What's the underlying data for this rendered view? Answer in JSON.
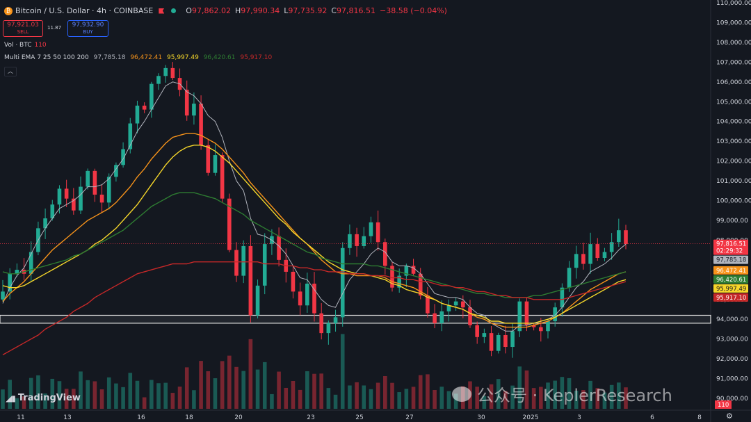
{
  "header": {
    "symbol": "Bitcoin / U.S. Dollar · 4h · COINBASE",
    "btc_icon": "₿",
    "ohlc": [
      {
        "k": "O",
        "v": "97,862.02"
      },
      {
        "k": "H",
        "v": "97,990.34"
      },
      {
        "k": "L",
        "v": "97,735.92"
      },
      {
        "k": "C",
        "v": "97,816.51"
      }
    ],
    "change": "−38.58 (−0.04%)"
  },
  "trade": {
    "sell_price": "97,921.03",
    "sell_label": "SELL",
    "spread": "11.87",
    "buy_price": "97,932.90",
    "buy_label": "BUY"
  },
  "volume": {
    "label": "Vol · BTC",
    "value": "110"
  },
  "ema_legend": {
    "label": "Multi EMA 7 25 50 100 200",
    "values": [
      "97,785.18",
      "96,472.41",
      "95,997.49",
      "96,420.61",
      "95,917.10"
    ]
  },
  "collapse_icon": "chevron-up-icon",
  "colors": {
    "up": "#22ab94",
    "down": "#f23645",
    "ema7": "#b2b5be",
    "ema25": "#f7931a",
    "ema50": "#f5d62a",
    "ema100": "#2e7d32",
    "ema200": "#c62828"
  },
  "branding": {
    "tradingview": "TradingView"
  },
  "watermark": "公众号 · KeplerResearch",
  "chart_data": {
    "type": "candlestick",
    "yaxis": {
      "range": [
        90000,
        110000
      ],
      "ticks": [
        "110,000.00",
        "109,000.00",
        "108,000.00",
        "107,000.00",
        "106,000.00",
        "105,000.00",
        "104,000.00",
        "103,000.00",
        "102,000.00",
        "101,000.00",
        "100,000.00",
        "99,000.00",
        "98,000.00",
        "97,000.00",
        "96,000.00",
        "95,000.00",
        "94,000.00",
        "93,000.00",
        "92,000.00",
        "91,000.00",
        "90,000.00"
      ]
    },
    "xaxis": {
      "ticks": [
        "11",
        "13",
        "16",
        "18",
        "20",
        "23",
        "25",
        "27",
        "30",
        "2025",
        "3",
        "6",
        "8"
      ]
    },
    "price_labels": [
      {
        "name": "last",
        "value": 97816.51,
        "text": "97,816.51",
        "sub": "02:29:32",
        "color": "#f23645"
      },
      {
        "name": "ema7",
        "value": 97785.18,
        "text": "97,785.18",
        "color": "#b2b5be"
      },
      {
        "name": "ema25",
        "value": 96472.41,
        "text": "96,472.41",
        "color": "#f7931a"
      },
      {
        "name": "ema100",
        "value": 96420.61,
        "text": "96,420.61",
        "color": "#2e7d32"
      },
      {
        "name": "ema50",
        "value": 95997.49,
        "text": "95,997.49",
        "color": "#f5d62a"
      },
      {
        "name": "ema200",
        "value": 95917.1,
        "text": "95,917.10",
        "color": "#c62828"
      }
    ],
    "volume_label": "110",
    "support_zone": [
      93800,
      94200
    ],
    "close_series": [
      95400,
      96300,
      96500,
      96300,
      97400,
      98600,
      99100,
      99800,
      100600,
      100100,
      99500,
      100700,
      101500,
      100300,
      99900,
      101200,
      101800,
      102600,
      103900,
      104800,
      104600,
      105900,
      106300,
      106700,
      106200,
      105600,
      104300,
      104900,
      102800,
      101400,
      102300,
      100100,
      97500,
      96200,
      97700,
      94200,
      95700,
      97800,
      98200,
      97000,
      96400,
      95400,
      94700,
      95800,
      94300,
      93300,
      93800,
      94100,
      97600,
      98300,
      97700,
      98200,
      98900,
      97900,
      96700,
      95600,
      96200,
      96700,
      96300,
      95200,
      94300,
      93800,
      94400,
      94700,
      94900,
      94600,
      93700,
      93100,
      93300,
      92400,
      93200,
      92600,
      93400,
      94900,
      93700,
      93600,
      93400,
      93900,
      94600,
      95600,
      96600,
      97300,
      96800,
      97800,
      97100,
      97400,
      97900,
      98500,
      97800
    ],
    "ema_series": {
      "ema7": [
        94800,
        95600,
        96200,
        96600,
        97300,
        98000,
        98600,
        99100,
        99600,
        99800,
        100000,
        100300,
        100700,
        100700,
        100800,
        101100,
        101600,
        102100,
        102800,
        103500,
        104000,
        104600,
        105200,
        105800,
        106000,
        105900,
        105500,
        105300,
        104900,
        104300,
        104000,
        103200,
        102000,
        101000,
        100500,
        99100,
        98300,
        98200,
        98000,
        97700,
        97300,
        96700,
        96100,
        96000,
        95500,
        95000,
        94700,
        94600,
        95300,
        96000,
        96400,
        96800,
        97300,
        97600,
        97400,
        96900,
        96700,
        96700,
        96600,
        96300,
        95800,
        95300,
        95200,
        95100,
        95100,
        95000,
        94600,
        94300,
        94200,
        93800,
        93600,
        93400,
        93400,
        93700,
        93700,
        93800,
        93900,
        94000,
        94200,
        94600,
        95100,
        95600,
        95900,
        96400,
        96600,
        96800,
        97100,
        97500,
        97800
      ],
      "ema25": [
        94900,
        95300,
        95600,
        95900,
        96300,
        96700,
        97100,
        97500,
        97800,
        98100,
        98400,
        98700,
        99000,
        99200,
        99400,
        99600,
        99900,
        100300,
        100700,
        101200,
        101600,
        102100,
        102500,
        102900,
        103200,
        103300,
        103400,
        103400,
        103300,
        103100,
        102900,
        102600,
        102200,
        101800,
        101400,
        100900,
        100500,
        100100,
        99700,
        99300,
        98900,
        98500,
        98100,
        97800,
        97400,
        97000,
        96700,
        96400,
        96300,
        96300,
        96200,
        96200,
        96200,
        96200,
        96100,
        95900,
        95800,
        95700,
        95600,
        95400,
        95200,
        95000,
        94800,
        94700,
        94600,
        94500,
        94300,
        94100,
        94000,
        93800,
        93700,
        93600,
        93600,
        93600,
        93600,
        93700,
        93800,
        93900,
        94100,
        94300,
        94600,
        94900,
        95200,
        95500,
        95700,
        95900,
        96100,
        96300,
        96400
      ],
      "ema50": [
        95700,
        95600,
        95600,
        95700,
        95900,
        96100,
        96300,
        96500,
        96700,
        96900,
        97100,
        97300,
        97500,
        97800,
        98000,
        98300,
        98600,
        99000,
        99400,
        99800,
        100300,
        100800,
        101300,
        101800,
        102200,
        102500,
        102700,
        102800,
        102800,
        102700,
        102500,
        102200,
        101900,
        101500,
        101100,
        100700,
        100300,
        99900,
        99500,
        99100,
        98800,
        98400,
        98100,
        97800,
        97500,
        97200,
        96900,
        96700,
        96500,
        96400,
        96300,
        96300,
        96200,
        96100,
        96000,
        95800,
        95700,
        95500,
        95400,
        95300,
        95100,
        95000,
        94800,
        94700,
        94600,
        94500,
        94300,
        94200,
        94100,
        93900,
        93900,
        93800,
        93800,
        93800,
        93800,
        93800,
        93900,
        94000,
        94100,
        94300,
        94500,
        94700,
        94900,
        95100,
        95300,
        95500,
        95700,
        95900,
        96000
      ],
      "ema100": [
        96400,
        96300,
        96300,
        96400,
        96500,
        96600,
        96700,
        96800,
        96900,
        97000,
        97200,
        97300,
        97500,
        97700,
        97900,
        98100,
        98300,
        98500,
        98800,
        99100,
        99400,
        99700,
        99900,
        100100,
        100300,
        100400,
        100400,
        100400,
        100300,
        100200,
        100100,
        99900,
        99700,
        99500,
        99300,
        99000,
        98800,
        98600,
        98400,
        98200,
        98000,
        97800,
        97600,
        97400,
        97300,
        97100,
        97000,
        96900,
        96800,
        96800,
        96800,
        96800,
        96700,
        96700,
        96600,
        96500,
        96400,
        96300,
        96200,
        96100,
        96000,
        95900,
        95800,
        95700,
        95600,
        95500,
        95400,
        95300,
        95300,
        95200,
        95200,
        95100,
        95100,
        95100,
        95100,
        95200,
        95200,
        95300,
        95400,
        95500,
        95600,
        95700,
        95800,
        95900,
        96000,
        96100,
        96200,
        96300,
        96400
      ],
      "ema200": [
        92200,
        92400,
        92600,
        92800,
        93000,
        93200,
        93500,
        93700,
        93900,
        94100,
        94400,
        94600,
        94800,
        95100,
        95300,
        95500,
        95700,
        95900,
        96100,
        96300,
        96400,
        96500,
        96600,
        96700,
        96800,
        96800,
        96800,
        96900,
        96900,
        96900,
        96900,
        96900,
        96900,
        96900,
        96900,
        96900,
        96900,
        96800,
        96800,
        96800,
        96700,
        96700,
        96600,
        96600,
        96500,
        96500,
        96400,
        96400,
        96400,
        96300,
        96300,
        96300,
        96200,
        96200,
        96200,
        96100,
        96100,
        96000,
        96000,
        95900,
        95900,
        95800,
        95700,
        95700,
        95600,
        95600,
        95500,
        95400,
        95400,
        95300,
        95200,
        95200,
        95100,
        95100,
        95100,
        95000,
        95000,
        95000,
        95000,
        95000,
        95100,
        95200,
        95300,
        95400,
        95500,
        95600,
        95700,
        95800,
        95900
      ]
    }
  }
}
